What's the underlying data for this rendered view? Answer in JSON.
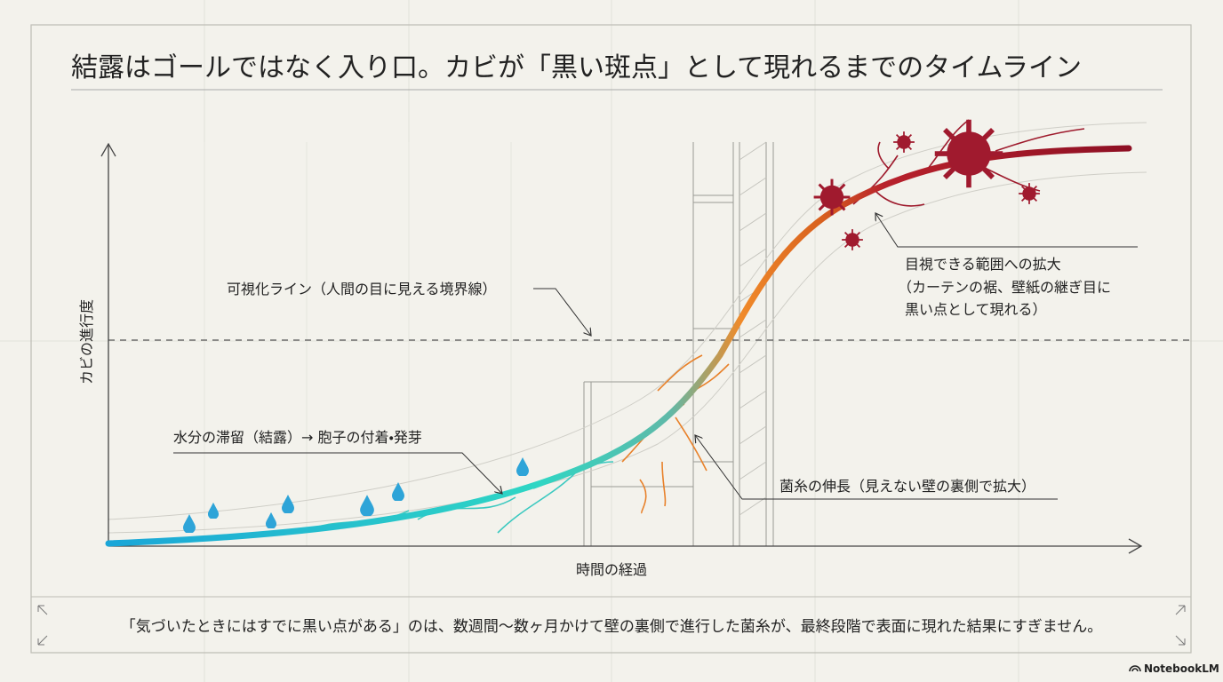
{
  "header": {
    "title": "結露はゴールではなく入り口。カビが「黒い斑点」として現れるまでのタイムライン"
  },
  "axes": {
    "y_label": "カビの進行度",
    "x_label": "時間の経過"
  },
  "annotations": {
    "visibility_line": "可視化ライン（人間の目に見える境界線）",
    "stage_moisture": "水分の滞留（結露）→ 胞子の付着・発芽",
    "stage_hyphae": "菌糸の伸長（見えない壁の裏側で拡大）",
    "stage_visible": [
      "目視できる範囲への拡大",
      "（カーテンの裾、壁紙の継ぎ目に",
      "黒い点として現れる）"
    ]
  },
  "footer": {
    "caption": "「気づいたときにはすでに黒い点がある」のは、数週間〜数ヶ月かけて壁の裏側で進行した菌糸が、最終段階で表面に現れた結果にすぎません。"
  },
  "brand": "NotebookLM"
}
